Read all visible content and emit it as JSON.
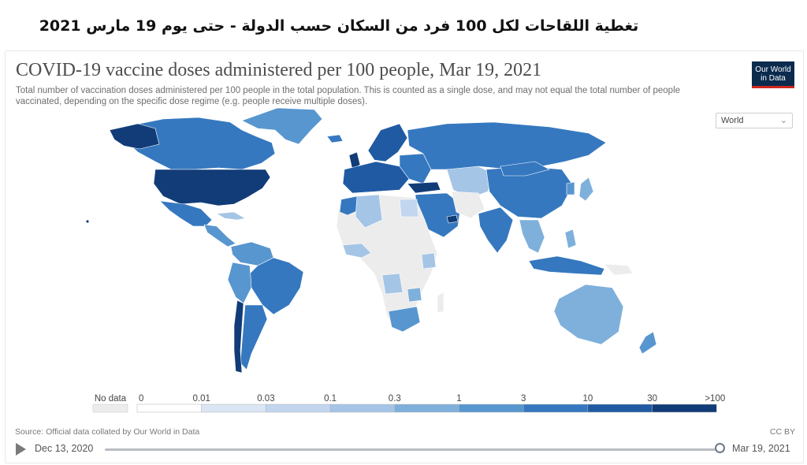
{
  "heading_ar": "تغطية اللقاحات لكل 100 فرد من السكان حسب الدولة - حتى يوم 19 مارس 2021",
  "chart": {
    "title": "COVID-19 vaccine doses administered per 100 people, Mar 19, 2021",
    "subtitle": "Total number of vaccination doses administered per 100 people in the total population. This is counted as a single dose, and may not equal the total number of people vaccinated, depending on the specific dose regime (e.g. people receive multiple doses).",
    "logo_line1": "Our World",
    "logo_line2": "in Data",
    "region_select": "World",
    "source": "Source: Official data collated by Our World in Data",
    "license": "CC BY"
  },
  "legend": {
    "no_data_label": "No data",
    "no_data_color": "#ececec",
    "bins": [
      {
        "label": "0",
        "color": "#ffffff"
      },
      {
        "label": "0.01",
        "color": "#dbe6f5"
      },
      {
        "label": "0.03",
        "color": "#c3d6ef"
      },
      {
        "label": "0.1",
        "color": "#a5c5e6"
      },
      {
        "label": "0.3",
        "color": "#7fb0dc"
      },
      {
        "label": "1",
        "color": "#5896cf"
      },
      {
        "label": "3",
        "color": "#3578bf"
      },
      {
        "label": "10",
        "color": "#1f5aa3"
      },
      {
        "label": "30",
        "color": "#113c78"
      }
    ],
    "last_label": ">100"
  },
  "timeline": {
    "start_date": "Dec 13, 2020",
    "end_date": "Mar 19, 2021",
    "position": 1.0
  }
}
